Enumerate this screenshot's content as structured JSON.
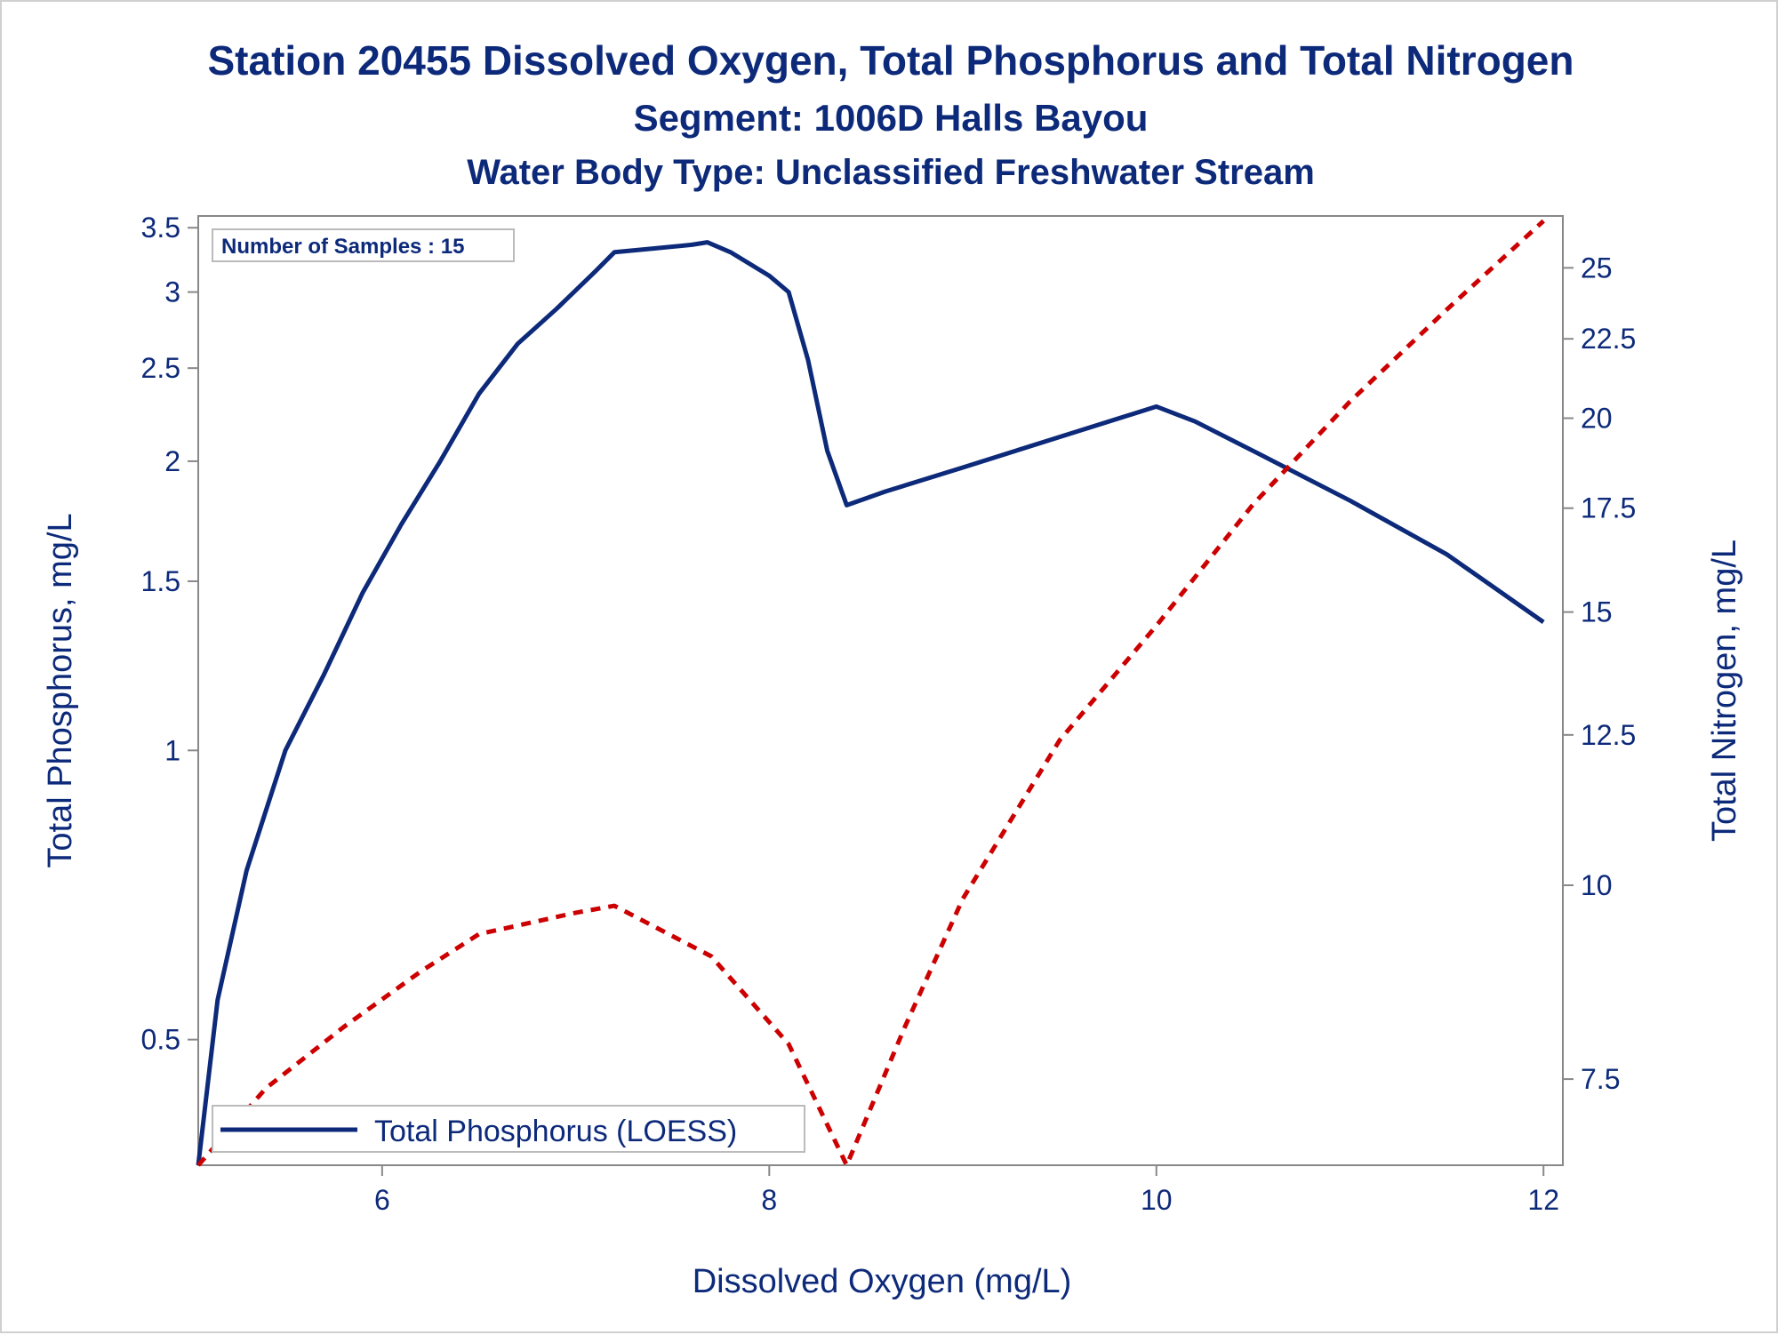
{
  "titles": {
    "line1": "Station 20455  Dissolved Oxygen, Total Phosphorus and Total Nitrogen",
    "line2": "Segment: 1006D  Halls Bayou",
    "line3": "Water Body Type: Unclassified Freshwater Stream"
  },
  "inset": {
    "text": "Number of Samples : 15"
  },
  "legend": {
    "label": "Total Phosphorus (LOESS)"
  },
  "colors": {
    "text": "#0d2a7a",
    "tp_line": "#0d2a7a",
    "tn_line": "#cc0000",
    "axis": "#888888",
    "frame_border": "#d0d0d0"
  },
  "chart_data": {
    "type": "line",
    "xlabel": "Dissolved Oxygen (mg/L)",
    "ylabel": "Total Phosphorus, mg/L",
    "y2label": "Total Nitrogen, mg/L",
    "xlim": [
      5.05,
      12.1
    ],
    "ylim": [
      0.37,
      3.6
    ],
    "y2lim": [
      6.6,
      27.0
    ],
    "yscale": "log",
    "y2scale": "log",
    "grid": false,
    "legend_position": "bottom-left",
    "x_ticks": [
      "6",
      "8",
      "10",
      "12"
    ],
    "y_ticks": [
      "0.5",
      "1",
      "1.5",
      "2",
      "2.5",
      "3",
      "3.5"
    ],
    "y2_ticks": [
      "7.5",
      "10",
      "12.5",
      "15",
      "17.5",
      "20",
      "22.5",
      "25"
    ],
    "series": [
      {
        "name": "Total Phosphorus (LOESS)",
        "axis": "left",
        "style": "solid",
        "x": [
          5.05,
          5.15,
          5.3,
          5.5,
          5.7,
          5.9,
          6.1,
          6.3,
          6.5,
          6.7,
          6.9,
          7.1,
          7.2,
          7.4,
          7.6,
          7.68,
          7.8,
          8.0,
          8.1,
          8.2,
          8.3,
          8.4,
          8.6,
          9.0,
          9.5,
          10.0,
          10.2,
          10.5,
          11.0,
          11.5,
          12.0
        ],
        "y": [
          0.37,
          0.55,
          0.75,
          1.0,
          1.2,
          1.46,
          1.72,
          2.0,
          2.35,
          2.65,
          2.88,
          3.15,
          3.3,
          3.33,
          3.36,
          3.38,
          3.3,
          3.12,
          3.0,
          2.55,
          2.05,
          1.8,
          1.86,
          1.97,
          2.12,
          2.28,
          2.2,
          2.05,
          1.82,
          1.6,
          1.36
        ]
      },
      {
        "axis": "right",
        "style": "dashed",
        "x": [
          5.05,
          5.4,
          5.8,
          6.2,
          6.5,
          7.0,
          7.2,
          7.7,
          8.1,
          8.4,
          8.7,
          9.0,
          9.5,
          10.0,
          10.5,
          11.0,
          11.5,
          12.0
        ],
        "y": [
          6.6,
          7.4,
          8.1,
          8.8,
          9.3,
          9.6,
          9.7,
          9.0,
          7.9,
          6.6,
          8.1,
          9.8,
          12.4,
          14.7,
          17.6,
          20.5,
          23.5,
          26.8
        ]
      }
    ]
  }
}
